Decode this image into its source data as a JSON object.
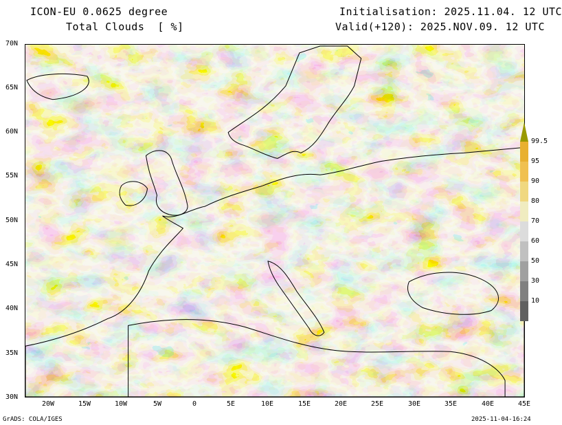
{
  "header": {
    "model": "ICON-EU 0.0625 degree",
    "variable": "Total Clouds  [ %]",
    "init": "Initialisation: 2025.11.04. 12 UTC",
    "valid": "Valid(+120): 2025.NOV.09. 12 UTC"
  },
  "axes": {
    "lat_labels": [
      "70N",
      "65N",
      "60N",
      "55N",
      "50N",
      "45N",
      "40N",
      "35N",
      "30N"
    ],
    "lon_labels": [
      "20W",
      "15W",
      "10W",
      "5W",
      "0",
      "5E",
      "10E",
      "15E",
      "20E",
      "25E",
      "30E",
      "35E",
      "40E",
      "45E"
    ]
  },
  "colorbar": {
    "levels": [
      "99.5",
      "95",
      "90",
      "80",
      "70",
      "60",
      "50",
      "30",
      "10"
    ],
    "colors": [
      "#999900",
      "#e8b030",
      "#f0c050",
      "#f0d880",
      "#f0ecc0",
      "#dcdcdc",
      "#c0c0c0",
      "#a0a0a0",
      "#808080",
      "#606060"
    ]
  },
  "footer": {
    "left": "GrADS: COLA/IGES",
    "right": "2025-11-04-16:24"
  }
}
